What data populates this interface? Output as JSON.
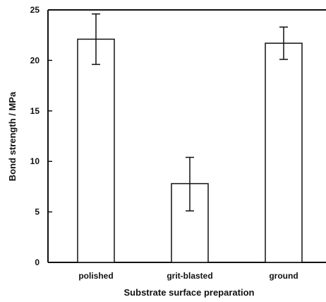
{
  "chart_data": {
    "type": "bar",
    "title": "",
    "xlabel": "Substrate surface preparation",
    "ylabel": "Bond strength / MPa",
    "categories": [
      "polished",
      "grit-blasted",
      "ground"
    ],
    "values": [
      22.1,
      7.8,
      21.7
    ],
    "error_low": [
      19.6,
      5.1,
      20.1
    ],
    "error_high": [
      24.6,
      10.4,
      23.3
    ],
    "ylim": [
      0,
      25
    ],
    "yticks": [
      "0",
      "5",
      "10",
      "15",
      "20",
      "25"
    ],
    "grid": false,
    "legend": "none",
    "colors": {
      "bar_fill": "#ffffff",
      "stroke": "#111111"
    }
  }
}
